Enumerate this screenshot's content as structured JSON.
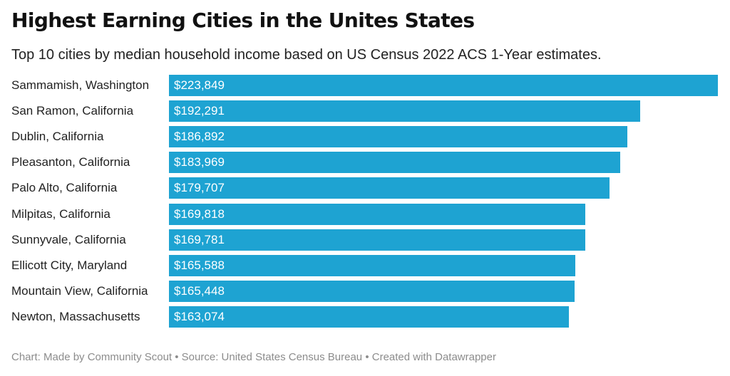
{
  "header": {
    "title": "Highest Earning Cities in the Unites States",
    "subtitle": "Top 10 cities by median household income based on US Census 2022 ACS 1-Year estimates."
  },
  "footer": {
    "credit": "Chart: Made by Community Scout • Source: United States Census Bureau • Created with Datawrapper"
  },
  "colors": {
    "bar": "#1ea3d2",
    "value_text": "#ffffff"
  },
  "chart_data": {
    "type": "bar",
    "orientation": "horizontal",
    "title": "Highest Earning Cities in the Unites States",
    "subtitle": "Top 10 cities by median household income based on US Census 2022 ACS 1-Year estimates.",
    "categories": [
      "Sammamish, Washington",
      "San Ramon, California",
      "Dublin, California",
      "Pleasanton, California",
      "Palo Alto, California",
      "Milpitas, California",
      "Sunnyvale, California",
      "Ellicott City, Maryland",
      "Mountain View, California",
      "Newton, Massachusetts"
    ],
    "values": [
      223849,
      192291,
      186892,
      183969,
      179707,
      169818,
      169781,
      165588,
      165448,
      163074
    ],
    "value_labels": [
      "$223,849",
      "$192,291",
      "$186,892",
      "$183,969",
      "$179,707",
      "$169,818",
      "$169,781",
      "$165,588",
      "$165,448",
      "$163,074"
    ],
    "grid": false,
    "legend": "none"
  }
}
